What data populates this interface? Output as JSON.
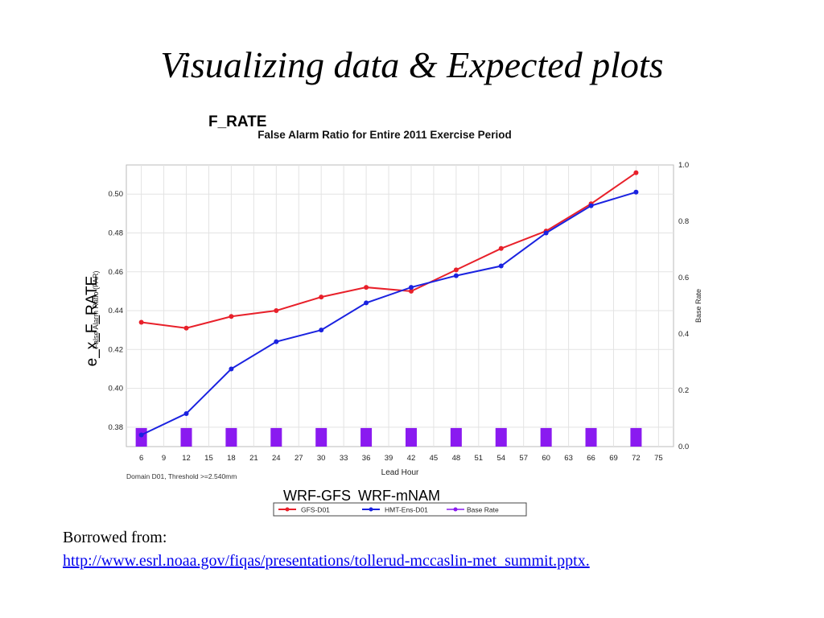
{
  "slide": {
    "title": "Visualizing data & Expected plots",
    "overlay_title": "F_RATE",
    "overlay_ylabel": "e_x_F_RATE",
    "overlay_legend": "WRF-GFS   WRF-mNAM",
    "borrowed_label": "Borrowed from:",
    "source_url": "http://www.esrl.noaa.gov/fiqas/presentations/tollerud-mccaslin-met_summit.pptx."
  },
  "chart_data": {
    "type": "line",
    "title": "False Alarm Ratio for Entire 2011 Exercise Period",
    "xlabel": "Lead Hour",
    "ylabel": "False Alarm Ratio (FAR)",
    "y2label": "Base Rate",
    "footnote": "Domain D01, Threshold >=2.540mm",
    "x_ticks": [
      6,
      9,
      12,
      15,
      18,
      21,
      24,
      27,
      30,
      33,
      36,
      39,
      42,
      45,
      48,
      51,
      54,
      57,
      60,
      63,
      66,
      69,
      72,
      75
    ],
    "xlim": [
      4,
      77
    ],
    "ylim": [
      0.37,
      0.515
    ],
    "y_ticks": [
      0.38,
      0.4,
      0.42,
      0.44,
      0.46,
      0.48,
      0.5
    ],
    "y2lim": [
      0.0,
      1.0
    ],
    "y2_ticks": [
      0.0,
      0.2,
      0.4,
      0.6,
      0.8,
      1.0
    ],
    "grid": true,
    "legend_position": "bottom",
    "x": [
      6,
      12,
      18,
      24,
      30,
      36,
      42,
      48,
      54,
      60,
      66,
      72
    ],
    "series": [
      {
        "name": "GFS-D01",
        "color": "#e8202a",
        "axis": "left",
        "values": [
          0.434,
          0.431,
          0.437,
          0.44,
          0.447,
          0.452,
          0.45,
          0.461,
          0.472,
          0.481,
          0.495,
          0.511
        ]
      },
      {
        "name": "HMT-Ens-D01",
        "color": "#1a22e0",
        "axis": "left",
        "values": [
          0.376,
          0.387,
          0.41,
          0.424,
          0.43,
          0.444,
          0.452,
          0.458,
          0.463,
          0.48,
          0.494,
          0.501
        ]
      },
      {
        "name": "Base Rate",
        "color": "#8a1af0",
        "axis": "right",
        "kind": "bar",
        "values": [
          0.066,
          0.066,
          0.066,
          0.066,
          0.066,
          0.066,
          0.066,
          0.066,
          0.066,
          0.066,
          0.066,
          0.066
        ]
      }
    ]
  }
}
